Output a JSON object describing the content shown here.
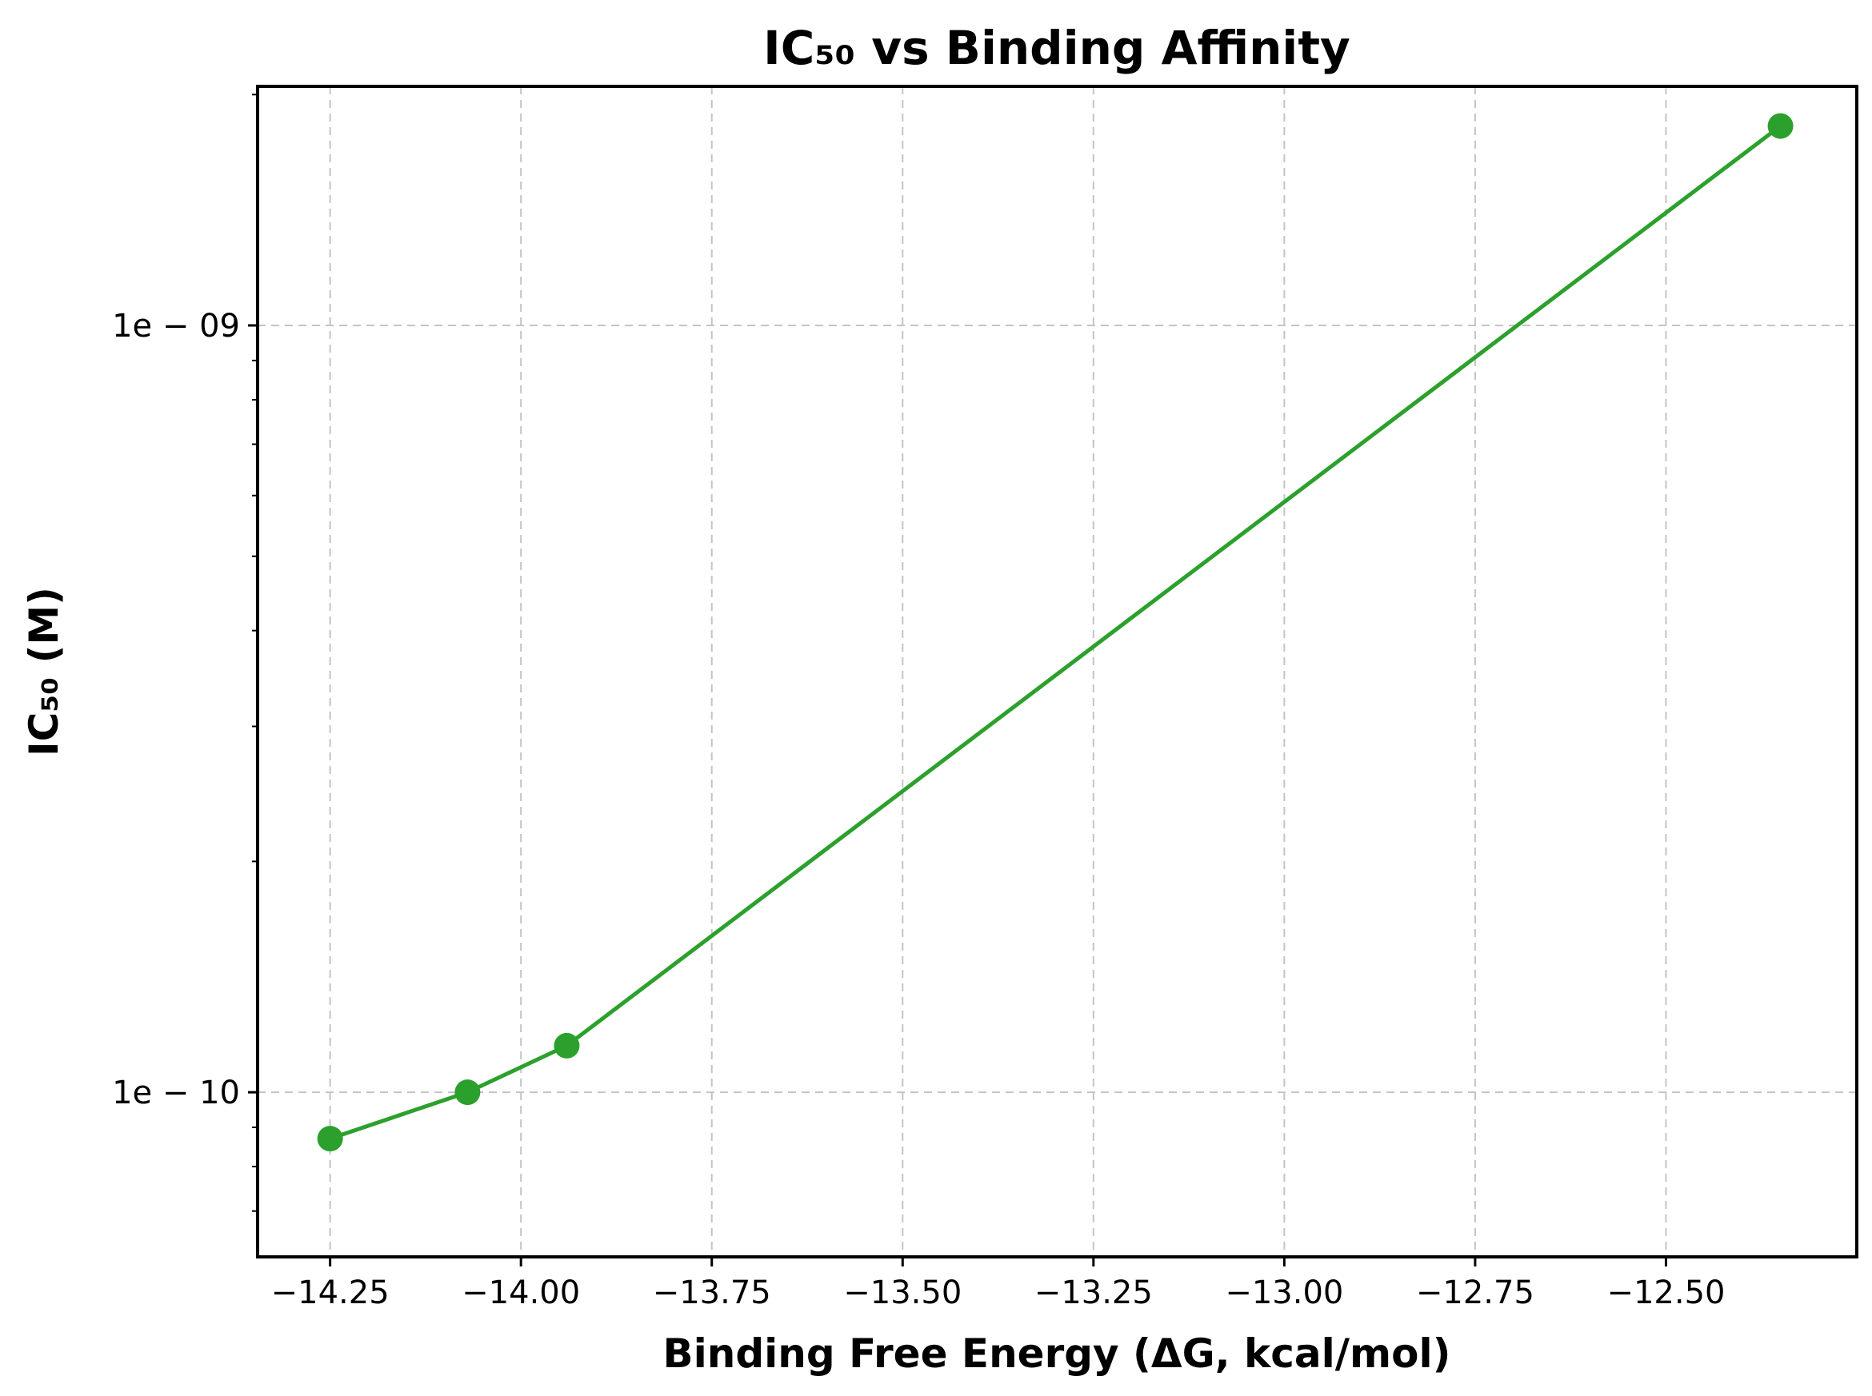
{
  "chart_data": {
    "type": "line",
    "title": "IC₅₀ vs Binding Affinity",
    "xlabel": "Binding Free Energy (ΔG, kcal/mol)",
    "ylabel": "IC₅₀ (M)",
    "x": [
      -14.25,
      -14.07,
      -13.94,
      -12.35
    ],
    "series": [
      {
        "values": [
          8.7e-11,
          1e-10,
          1.15e-10,
          1.82e-09
        ]
      }
    ],
    "xlim": [
      -14.345,
      -12.25
    ],
    "ylim": [
      6.1e-11,
      2.05e-09
    ],
    "yscale": "log",
    "x_ticks": [
      -14.25,
      -14.0,
      -13.75,
      -13.5,
      -13.25,
      -13.0,
      -12.75,
      -12.5
    ],
    "x_tick_labels": [
      "−14.25",
      "−14.00",
      "−13.75",
      "−13.50",
      "−13.25",
      "−13.00",
      "−12.75",
      "−12.50"
    ],
    "y_ticks": [
      1e-10,
      1e-09
    ],
    "y_tick_labels": [
      "1e − 10",
      "1e − 09"
    ],
    "grid": true,
    "color": "#2ca02c"
  }
}
